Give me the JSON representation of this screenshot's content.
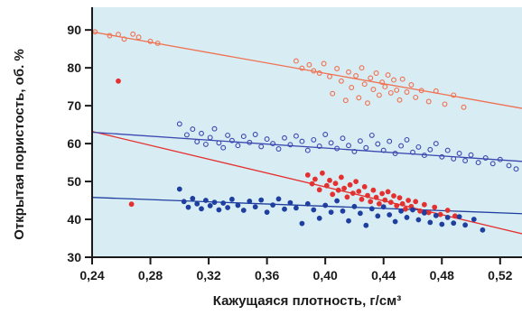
{
  "chart_data": {
    "type": "scatter",
    "xlabel": "Кажущаяся плотность, г/см³",
    "ylabel": "Открытая пористость, об. %",
    "xlim": [
      0.24,
      0.535
    ],
    "ylim": [
      30,
      96
    ],
    "x_ticks": [
      0.24,
      0.28,
      0.32,
      0.36,
      0.4,
      0.44,
      0.48,
      0.52
    ],
    "x_tick_labels": [
      "0,24",
      "0,28",
      "0,32",
      "0,36",
      "0,40",
      "0,44",
      "0,48",
      "0,52"
    ],
    "y_ticks": [
      30,
      40,
      50,
      60,
      70,
      80,
      90
    ],
    "y_tick_labels": [
      "30",
      "40",
      "50",
      "60",
      "70",
      "80",
      "90"
    ],
    "grid": false,
    "plot_background": "#d8ecf3",
    "series": [
      {
        "marker": "open-circle",
        "color": "#f07050",
        "points": [
          [
            0.242,
            89.5
          ],
          [
            0.252,
            88.5
          ],
          [
            0.258,
            88.8
          ],
          [
            0.262,
            87.6
          ],
          [
            0.268,
            88.9
          ],
          [
            0.272,
            88.1
          ],
          [
            0.28,
            87.0
          ],
          [
            0.285,
            86.5
          ],
          [
            0.38,
            81.8
          ],
          [
            0.384,
            79.9
          ],
          [
            0.389,
            80.8
          ],
          [
            0.392,
            79.2
          ],
          [
            0.396,
            78.6
          ],
          [
            0.399,
            81.1
          ],
          [
            0.403,
            77.7
          ],
          [
            0.405,
            73.2
          ],
          [
            0.408,
            79.8
          ],
          [
            0.411,
            76.5
          ],
          [
            0.414,
            71.4
          ],
          [
            0.416,
            78.9
          ],
          [
            0.418,
            74.8
          ],
          [
            0.421,
            77.9
          ],
          [
            0.423,
            72.1
          ],
          [
            0.425,
            80.0
          ],
          [
            0.427,
            75.7
          ],
          [
            0.429,
            70.7
          ],
          [
            0.431,
            77.3
          ],
          [
            0.433,
            74.3
          ],
          [
            0.435,
            78.6
          ],
          [
            0.437,
            72.8
          ],
          [
            0.439,
            76.2
          ],
          [
            0.441,
            75.0
          ],
          [
            0.443,
            78.1
          ],
          [
            0.445,
            73.4
          ],
          [
            0.447,
            76.8
          ],
          [
            0.449,
            74.1
          ],
          [
            0.451,
            71.5
          ],
          [
            0.453,
            77.0
          ],
          [
            0.456,
            73.6
          ],
          [
            0.459,
            75.5
          ],
          [
            0.462,
            72.2
          ],
          [
            0.466,
            74.0
          ],
          [
            0.471,
            71.1
          ],
          [
            0.476,
            73.9
          ],
          [
            0.482,
            70.4
          ],
          [
            0.488,
            72.8
          ],
          [
            0.495,
            69.6
          ]
        ]
      },
      {
        "marker": "filled-circle",
        "color": "#e53030",
        "points": [
          [
            0.258,
            76.5
          ],
          [
            0.267,
            44.0
          ],
          [
            0.388,
            51.7
          ],
          [
            0.391,
            49.4
          ],
          [
            0.393,
            50.6
          ],
          [
            0.396,
            47.8
          ],
          [
            0.398,
            52.2
          ],
          [
            0.401,
            48.9
          ],
          [
            0.403,
            50.3
          ],
          [
            0.405,
            46.6
          ],
          [
            0.407,
            49.5
          ],
          [
            0.409,
            47.7
          ],
          [
            0.411,
            51.1
          ],
          [
            0.413,
            48.2
          ],
          [
            0.415,
            45.9
          ],
          [
            0.417,
            49.1
          ],
          [
            0.419,
            46.9
          ],
          [
            0.421,
            50.0
          ],
          [
            0.423,
            47.4
          ],
          [
            0.425,
            45.3
          ],
          [
            0.427,
            48.6
          ],
          [
            0.429,
            46.3
          ],
          [
            0.431,
            44.7
          ],
          [
            0.433,
            47.7
          ],
          [
            0.435,
            45.8
          ],
          [
            0.437,
            44.1
          ],
          [
            0.439,
            46.8
          ],
          [
            0.441,
            45.1
          ],
          [
            0.443,
            47.3
          ],
          [
            0.445,
            44.5
          ],
          [
            0.447,
            46.2
          ],
          [
            0.449,
            43.6
          ],
          [
            0.451,
            45.7
          ],
          [
            0.453,
            44.1
          ],
          [
            0.455,
            42.7
          ],
          [
            0.457,
            45.0
          ],
          [
            0.459,
            43.4
          ],
          [
            0.462,
            44.7
          ],
          [
            0.465,
            42.2
          ],
          [
            0.468,
            43.9
          ],
          [
            0.471,
            41.8
          ],
          [
            0.475,
            43.2
          ],
          [
            0.479,
            41.3
          ],
          [
            0.484,
            42.4
          ],
          [
            0.489,
            40.9
          ]
        ]
      },
      {
        "marker": "open-circle",
        "color": "#3a48b0",
        "points": [
          [
            0.3,
            65.2
          ],
          [
            0.305,
            62.3
          ],
          [
            0.309,
            63.8
          ],
          [
            0.312,
            60.5
          ],
          [
            0.315,
            62.7
          ],
          [
            0.318,
            59.8
          ],
          [
            0.321,
            61.6
          ],
          [
            0.324,
            63.9
          ],
          [
            0.327,
            60.2
          ],
          [
            0.33,
            58.9
          ],
          [
            0.333,
            62.2
          ],
          [
            0.336,
            60.8
          ],
          [
            0.34,
            59.5
          ],
          [
            0.344,
            61.9
          ],
          [
            0.348,
            60.3
          ],
          [
            0.352,
            62.4
          ],
          [
            0.356,
            59.2
          ],
          [
            0.36,
            61.2
          ],
          [
            0.364,
            60.0
          ],
          [
            0.368,
            58.6
          ],
          [
            0.372,
            61.5
          ],
          [
            0.376,
            59.7
          ],
          [
            0.38,
            62.0
          ],
          [
            0.384,
            60.6
          ],
          [
            0.388,
            58.2
          ],
          [
            0.392,
            61.0
          ],
          [
            0.396,
            59.3
          ],
          [
            0.4,
            62.4
          ],
          [
            0.404,
            60.2
          ],
          [
            0.408,
            58.7
          ],
          [
            0.412,
            61.4
          ],
          [
            0.416,
            59.5
          ],
          [
            0.42,
            57.9
          ],
          [
            0.424,
            60.7
          ],
          [
            0.428,
            58.9
          ],
          [
            0.432,
            62.2
          ],
          [
            0.436,
            59.9
          ],
          [
            0.44,
            58.2
          ],
          [
            0.444,
            60.6
          ],
          [
            0.448,
            57.4
          ],
          [
            0.452,
            59.4
          ],
          [
            0.456,
            61.0
          ],
          [
            0.46,
            57.7
          ],
          [
            0.464,
            59.1
          ],
          [
            0.468,
            56.9
          ],
          [
            0.472,
            58.4
          ],
          [
            0.476,
            60.0
          ],
          [
            0.48,
            56.5
          ],
          [
            0.484,
            58.2
          ],
          [
            0.488,
            56.0
          ],
          [
            0.492,
            57.4
          ],
          [
            0.496,
            55.5
          ],
          [
            0.5,
            57.0
          ],
          [
            0.505,
            55.0
          ],
          [
            0.51,
            56.2
          ],
          [
            0.515,
            54.7
          ],
          [
            0.52,
            55.8
          ],
          [
            0.526,
            54.2
          ],
          [
            0.531,
            53.3
          ]
        ]
      },
      {
        "marker": "filled-circle",
        "color": "#1f3fa0",
        "points": [
          [
            0.3,
            48.0
          ],
          [
            0.303,
            44.7
          ],
          [
            0.306,
            43.2
          ],
          [
            0.309,
            45.5
          ],
          [
            0.312,
            44.1
          ],
          [
            0.315,
            42.8
          ],
          [
            0.318,
            45.0
          ],
          [
            0.321,
            43.6
          ],
          [
            0.324,
            44.5
          ],
          [
            0.327,
            42.5
          ],
          [
            0.33,
            44.3
          ],
          [
            0.333,
            43.1
          ],
          [
            0.336,
            45.3
          ],
          [
            0.34,
            43.7
          ],
          [
            0.344,
            42.4
          ],
          [
            0.348,
            44.8
          ],
          [
            0.352,
            43.3
          ],
          [
            0.356,
            45.1
          ],
          [
            0.36,
            41.9
          ],
          [
            0.364,
            43.8
          ],
          [
            0.368,
            45.4
          ],
          [
            0.372,
            42.7
          ],
          [
            0.376,
            44.4
          ],
          [
            0.38,
            43.0
          ],
          [
            0.384,
            38.9
          ],
          [
            0.388,
            44.1
          ],
          [
            0.392,
            42.5
          ],
          [
            0.396,
            40.3
          ],
          [
            0.4,
            43.7
          ],
          [
            0.404,
            41.9
          ],
          [
            0.408,
            44.9
          ],
          [
            0.412,
            42.2
          ],
          [
            0.416,
            39.6
          ],
          [
            0.42,
            43.4
          ],
          [
            0.424,
            41.6
          ],
          [
            0.428,
            38.4
          ],
          [
            0.432,
            42.8
          ],
          [
            0.436,
            40.9
          ],
          [
            0.44,
            43.3
          ],
          [
            0.444,
            41.2
          ],
          [
            0.448,
            39.4
          ],
          [
            0.452,
            42.2
          ],
          [
            0.456,
            40.5
          ],
          [
            0.46,
            42.5
          ],
          [
            0.464,
            39.9
          ],
          [
            0.468,
            41.7
          ],
          [
            0.472,
            39.2
          ],
          [
            0.476,
            41.0
          ],
          [
            0.48,
            38.7
          ],
          [
            0.484,
            40.5
          ],
          [
            0.488,
            39.0
          ],
          [
            0.492,
            40.7
          ],
          [
            0.496,
            38.5
          ],
          [
            0.502,
            40.0
          ],
          [
            0.508,
            37.2
          ]
        ]
      }
    ],
    "trend_lines": [
      {
        "color": "#f07050",
        "x": [
          0.24,
          0.535
        ],
        "y": [
          89.5,
          69.3
        ]
      },
      {
        "color": "#e53030",
        "x": [
          0.24,
          0.535
        ],
        "y": [
          63.2,
          36.2
        ]
      },
      {
        "color": "#3a48b0",
        "x": [
          0.24,
          0.535
        ],
        "y": [
          63.0,
          55.3
        ]
      },
      {
        "color": "#1f3fa0",
        "x": [
          0.24,
          0.535
        ],
        "y": [
          45.8,
          41.5
        ]
      }
    ]
  }
}
